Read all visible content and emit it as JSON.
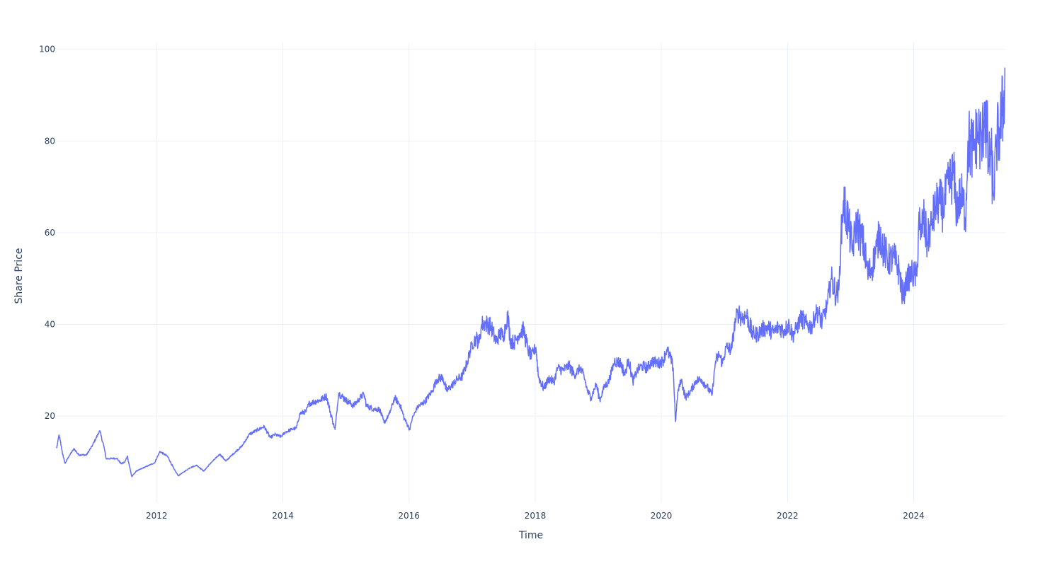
{
  "chart_data": {
    "type": "line",
    "xlabel": "Time",
    "ylabel": "Share Price",
    "xlim": [
      "2010-06-01",
      "2025-06-15"
    ],
    "ylim": [
      1.2,
      101.5
    ],
    "grid": true,
    "legend": "none",
    "x_ticks": [
      "2012",
      "2014",
      "2016",
      "2018",
      "2020",
      "2022",
      "2024"
    ],
    "y_ticks": [
      "20",
      "40",
      "60",
      "80",
      "100"
    ],
    "series": [
      {
        "color": "#636efa",
        "x": [
          "2010-06-01",
          "2010-06-15",
          "2010-07-10",
          "2010-07-20",
          "2010-08-15",
          "2010-09-10",
          "2010-10-05",
          "2010-11-20",
          "2010-12-25",
          "2011-02-05",
          "2011-03-01",
          "2011-03-15",
          "2011-05-15",
          "2011-06-10",
          "2011-07-01",
          "2011-07-15",
          "2011-08-10",
          "2011-09-05",
          "2011-10-20",
          "2011-12-20",
          "2012-01-20",
          "2012-03-05",
          "2012-04-10",
          "2012-05-05",
          "2012-05-25",
          "2012-07-10",
          "2012-08-20",
          "2012-09-30",
          "2012-11-10",
          "2013-01-01",
          "2013-02-05",
          "2013-03-20",
          "2013-05-10",
          "2013-06-20",
          "2013-08-01",
          "2013-09-15",
          "2013-10-20",
          "2013-11-15",
          "2013-12-20",
          "2014-01-15",
          "2014-02-20",
          "2014-03-20",
          "2014-04-10",
          "2014-05-15",
          "2014-06-01",
          "2014-06-20",
          "2014-08-05",
          "2014-09-10",
          "2014-10-15",
          "2014-10-30",
          "2014-11-20",
          "2015-01-01",
          "2015-02-15",
          "2015-03-20",
          "2015-04-15",
          "2015-05-01",
          "2015-06-15",
          "2015-07-15",
          "2015-08-10",
          "2015-09-10",
          "2015-10-10",
          "2015-11-10",
          "2015-12-05",
          "2016-01-05",
          "2016-01-20",
          "2016-02-20",
          "2016-04-01",
          "2016-05-15",
          "2016-06-10",
          "2016-07-15",
          "2016-08-05",
          "2016-09-01",
          "2016-10-05",
          "2016-11-05",
          "2016-12-05",
          "2017-01-01",
          "2017-01-25",
          "2017-02-10",
          "2017-02-25",
          "2017-03-20",
          "2017-04-20",
          "2017-05-20",
          "2017-06-10",
          "2017-07-01",
          "2017-07-15",
          "2017-07-25",
          "2017-08-10",
          "2017-09-01",
          "2017-10-01",
          "2017-10-25",
          "2017-11-20",
          "2017-12-10",
          "2018-01-05",
          "2018-01-20",
          "2018-02-20",
          "2018-03-20",
          "2018-04-20",
          "2018-05-10",
          "2018-06-10",
          "2018-07-15",
          "2018-08-15",
          "2018-09-20",
          "2018-10-15",
          "2018-10-30",
          "2018-11-20",
          "2018-12-20",
          "2019-01-10",
          "2019-02-05",
          "2019-03-01",
          "2019-04-05",
          "2019-05-10",
          "2019-06-05",
          "2019-06-25",
          "2019-07-20",
          "2019-08-15",
          "2019-09-10",
          "2019-10-10",
          "2019-11-10",
          "2019-12-10",
          "2020-01-10",
          "2020-02-01",
          "2020-02-20",
          "2020-03-10",
          "2020-03-23",
          "2020-04-05",
          "2020-04-25",
          "2020-05-20",
          "2020-06-20",
          "2020-07-20",
          "2020-08-20",
          "2020-09-20",
          "2020-10-20",
          "2020-11-10",
          "2020-12-01",
          "2020-12-20",
          "2021-01-10",
          "2021-02-10",
          "2021-03-05",
          "2021-03-25",
          "2021-04-10",
          "2021-05-10",
          "2021-06-10",
          "2021-07-10",
          "2021-08-10",
          "2021-09-10",
          "2021-10-10",
          "2021-11-10",
          "2021-12-10",
          "2022-01-10",
          "2022-01-30",
          "2022-02-20",
          "2022-03-20",
          "2022-04-20",
          "2022-05-20",
          "2022-06-20",
          "2022-07-20",
          "2022-08-20",
          "2022-09-10",
          "2022-10-10",
          "2022-10-25",
          "2022-11-05",
          "2022-11-20",
          "2022-12-20",
          "2023-01-10",
          "2023-02-05",
          "2023-02-25",
          "2023-03-20",
          "2023-04-10",
          "2023-05-05",
          "2023-06-01",
          "2023-06-20",
          "2023-07-10",
          "2023-08-10",
          "2023-09-10",
          "2023-10-10",
          "2023-11-01",
          "2023-11-20",
          "2023-12-20",
          "2024-01-20",
          "2024-02-01",
          "2024-02-10",
          "2024-02-25",
          "2024-03-20",
          "2024-04-20",
          "2024-05-20",
          "2024-06-20",
          "2024-07-20",
          "2024-08-20",
          "2024-09-01",
          "2024-10-01",
          "2024-10-15",
          "2024-10-30",
          "2024-11-10",
          "2024-12-10",
          "2025-01-05",
          "2025-02-01",
          "2025-02-15",
          "2025-03-10",
          "2025-03-25",
          "2025-04-07",
          "2025-04-25",
          "2025-05-10",
          "2025-05-25",
          "2025-06-05",
          "2025-06-12"
        ],
        "y": [
          13.0,
          15.9,
          11.0,
          9.7,
          11.5,
          12.9,
          11.6,
          11.5,
          13.6,
          16.8,
          13.5,
          10.7,
          10.8,
          9.6,
          10.0,
          11.3,
          6.8,
          8.0,
          8.8,
          9.8,
          12.3,
          11.2,
          8.5,
          7.0,
          7.5,
          8.7,
          9.3,
          8.0,
          9.8,
          11.7,
          10.2,
          11.8,
          13.5,
          16.0,
          16.9,
          17.7,
          15.3,
          16.0,
          15.5,
          16.5,
          17.1,
          17.4,
          20.6,
          21.0,
          22.7,
          23.0,
          23.5,
          24.4,
          19.0,
          17.1,
          25.0,
          23.5,
          22.3,
          23.8,
          24.8,
          22.2,
          21.5,
          21.5,
          18.5,
          20.5,
          24.0,
          22.5,
          19.5,
          17.1,
          19.5,
          22.0,
          23.1,
          25.5,
          28.0,
          28.5,
          25.5,
          26.5,
          28.0,
          28.7,
          32.0,
          35.9,
          37.0,
          36.0,
          40.0,
          40.3,
          39.5,
          36.2,
          38.0,
          37.5,
          40.0,
          42.2,
          36.5,
          36.0,
          38.0,
          38.9,
          34.5,
          33.0,
          35.0,
          28.5,
          26.0,
          28.2,
          27.5,
          30.5,
          30.0,
          31.0,
          29.0,
          30.5,
          28.0,
          25.5,
          24.0,
          27.0,
          23.5,
          26.5,
          27.4,
          32.0,
          31.6,
          29.0,
          32.5,
          27.5,
          30.0,
          31.0,
          30.5,
          32.0,
          31.5,
          32.0,
          34.5,
          33.0,
          30.5,
          18.8,
          25.0,
          28.0,
          24.0,
          25.5,
          27.8,
          28.0,
          26.5,
          24.5,
          32.0,
          33.5,
          31.5,
          35.0,
          34.5,
          41.0,
          42.5,
          41.5,
          42.0,
          38.0,
          37.8,
          39.0,
          39.3,
          38.2,
          39.5,
          38.6,
          40.0,
          37.5,
          39.0,
          41.5,
          40.0,
          39.5,
          43.0,
          40.5,
          44.5,
          50.0,
          46.5,
          47.5,
          57.5,
          67.0,
          62.0,
          56.0,
          62.5,
          59.5,
          57.0,
          51.0,
          52.5,
          57.0,
          60.0,
          56.5,
          54.0,
          54.5,
          51.5,
          45.5,
          49.5,
          51.0,
          50.5,
          64.5,
          58.5,
          63.5,
          58.0,
          63.0,
          67.0,
          65.5,
          70.5,
          73.0,
          65.5,
          68.0,
          66.0,
          64.5,
          80.0,
          78.0,
          82.0,
          79.5,
          88.5,
          75.0,
          77.0,
          68.0,
          80.0,
          82.0,
          85.5,
          88.0,
          96.0
        ]
      }
    ]
  }
}
